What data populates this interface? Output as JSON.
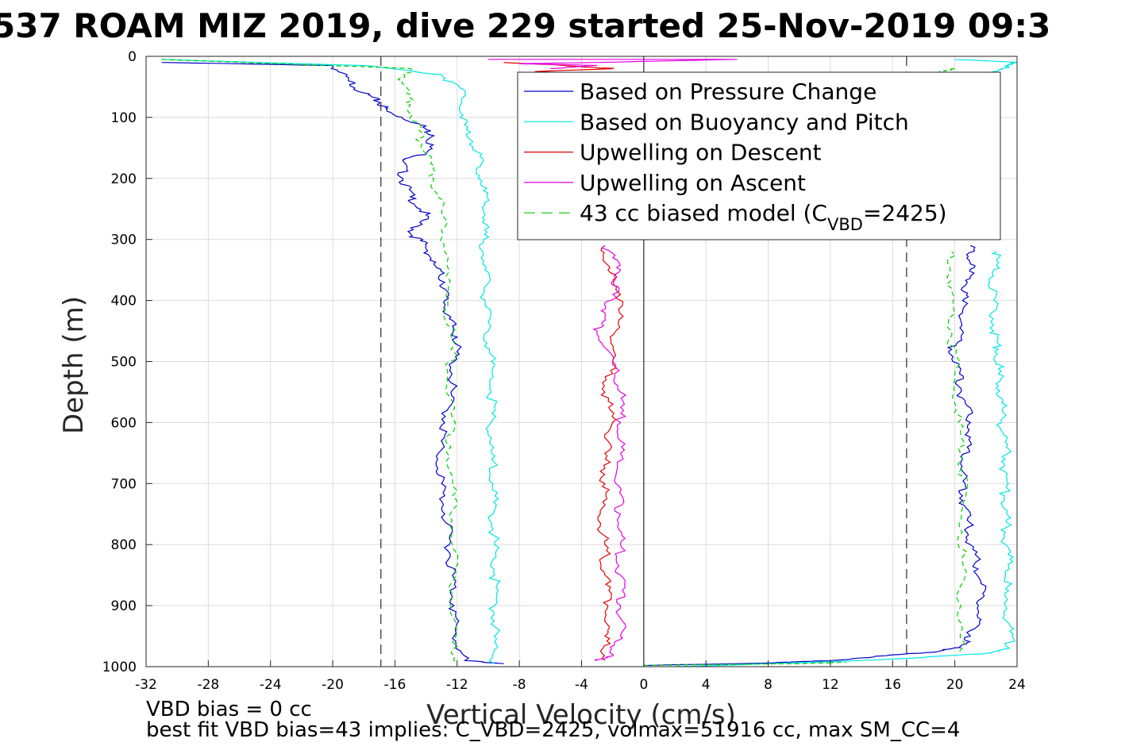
{
  "chart_data": {
    "type": "line",
    "title": "537 ROAM MIZ 2019, dive 229 started 25-Nov-2019 09:3",
    "xlabel": "Vertical Velocity (cm/s)",
    "ylabel": "Depth (m)",
    "xlim": [
      -32,
      24
    ],
    "ylim": [
      0,
      1000
    ],
    "y_reversed": true,
    "grid": true,
    "x_ticks": [
      "-32",
      "-28",
      "-24",
      "-20",
      "-16",
      "-12",
      "-8",
      "-4",
      "0",
      "4",
      "8",
      "12",
      "16",
      "20",
      "24"
    ],
    "y_ticks": [
      "0",
      "100",
      "200",
      "300",
      "400",
      "500",
      "600",
      "700",
      "800",
      "900",
      "1000"
    ],
    "reference_lines": {
      "zero_velocity_x": 0,
      "dashed_x": [
        -16.9,
        16.9
      ]
    },
    "legend": {
      "position": "top-right",
      "entries": [
        {
          "label": "Based on Pressure Change",
          "color": "#0000cc",
          "style": "solid"
        },
        {
          "label": "Based on Buoyancy and Pitch",
          "color": "#00e5e5",
          "style": "solid"
        },
        {
          "label": "Upwelling on Descent",
          "color": "#e60000",
          "style": "solid"
        },
        {
          "label": "Upwelling on Ascent",
          "color": "#e600e6",
          "style": "solid"
        },
        {
          "label_prefix": "43 cc biased model (C",
          "label_sub": "VBD",
          "label_suffix": "=2425)",
          "color": "#00cc00",
          "style": "dashed"
        }
      ]
    },
    "series": [
      {
        "name": "Based on Pressure Change",
        "color": "#0000cc",
        "segments": [
          {
            "points": [
              [
                -31,
                10
              ],
              [
                -20,
                15
              ],
              [
                -19,
                40
              ],
              [
                -18,
                60
              ],
              [
                -17,
                75
              ],
              [
                -16.5,
                90
              ],
              [
                -14.5,
                110
              ],
              [
                -13.5,
                130
              ],
              [
                -14,
                160
              ],
              [
                -15.5,
                170
              ],
              [
                -15.5,
                200
              ],
              [
                -15,
                230
              ],
              [
                -14,
                260
              ],
              [
                -15,
                290
              ],
              [
                -14,
                310
              ],
              [
                -13.5,
                340
              ],
              [
                -12.8,
                370
              ],
              [
                -12.8,
                400
              ],
              [
                -12.5,
                430
              ],
              [
                -12,
                460
              ],
              [
                -12.2,
                500
              ],
              [
                -12.4,
                550
              ],
              [
                -12.8,
                600
              ],
              [
                -13.2,
                650
              ],
              [
                -13,
                700
              ],
              [
                -12.8,
                750
              ],
              [
                -12.5,
                800
              ],
              [
                -12.3,
                850
              ],
              [
                -12.2,
                900
              ],
              [
                -12.2,
                950
              ],
              [
                -11.5,
                990
              ],
              [
                -9,
                995
              ]
            ]
          },
          {
            "points": [
              [
                0,
                998
              ],
              [
                8,
                994
              ],
              [
                12,
                990
              ],
              [
                16.5,
                980
              ],
              [
                19,
                975
              ],
              [
                20.3,
                968
              ],
              [
                21,
                950
              ],
              [
                21.5,
                920
              ],
              [
                21.8,
                880
              ],
              [
                21.5,
                840
              ],
              [
                21,
                800
              ],
              [
                20.8,
                760
              ],
              [
                20.5,
                720
              ],
              [
                20.5,
                680
              ],
              [
                20.8,
                640
              ],
              [
                21,
                600
              ],
              [
                20.5,
                560
              ],
              [
                20.3,
                520
              ],
              [
                19.8,
                480
              ],
              [
                20.5,
                450
              ],
              [
                20.5,
                400
              ],
              [
                20.8,
                370
              ],
              [
                21,
                340
              ],
              [
                21,
                310
              ]
            ]
          }
        ]
      },
      {
        "name": "Based on Buoyancy and Pitch",
        "color": "#00e5e5",
        "segments": [
          {
            "points": [
              [
                -31,
                5
              ],
              [
                -18,
                15
              ],
              [
                -13,
                30
              ],
              [
                -11.5,
                60
              ],
              [
                -11.8,
                100
              ],
              [
                -11,
                140
              ],
              [
                -10.5,
                180
              ],
              [
                -10.3,
                220
              ],
              [
                -10.2,
                260
              ],
              [
                -10.3,
                300
              ],
              [
                -10.2,
                350
              ],
              [
                -10.2,
                400
              ],
              [
                -10,
                450
              ],
              [
                -9.8,
                500
              ],
              [
                -9.8,
                550
              ],
              [
                -9.8,
                600
              ],
              [
                -9.8,
                650
              ],
              [
                -9.7,
                700
              ],
              [
                -9.7,
                750
              ],
              [
                -9.6,
                800
              ],
              [
                -9.6,
                850
              ],
              [
                -9.6,
                900
              ],
              [
                -9.6,
                950
              ],
              [
                -9.6,
                995
              ]
            ]
          },
          {
            "points": [
              [
                2,
                1000
              ],
              [
                12,
                992
              ],
              [
                18,
                985
              ],
              [
                22,
                978
              ],
              [
                23.5,
                970
              ],
              [
                23.5,
                930
              ],
              [
                23.2,
                880
              ],
              [
                23.5,
                840
              ],
              [
                23.3,
                800
              ],
              [
                23.3,
                760
              ],
              [
                23.2,
                720
              ],
              [
                23.2,
                680
              ],
              [
                23.3,
                640
              ],
              [
                23,
                600
              ],
              [
                23,
                560
              ],
              [
                22.8,
                520
              ],
              [
                22.8,
                480
              ],
              [
                22.5,
                450
              ],
              [
                22.5,
                400
              ],
              [
                22.5,
                350
              ],
              [
                22.7,
                320
              ]
            ]
          },
          {
            "points": [
              [
                20,
                5
              ],
              [
                24,
                10
              ],
              [
                23,
                20
              ],
              [
                22,
                30
              ]
            ]
          }
        ]
      },
      {
        "name": "Upwelling on Descent",
        "color": "#e60000",
        "segments": [
          {
            "points": [
              [
                -9,
                10
              ],
              [
                -5,
                15
              ],
              [
                -2,
                20
              ],
              [
                -7,
                25
              ],
              [
                -1,
                30
              ],
              [
                -6,
                35
              ],
              [
                -2,
                40
              ],
              [
                -3,
                45
              ],
              [
                -1,
                50
              ]
            ]
          },
          {
            "points": [
              [
                -2.5,
                310
              ],
              [
                -2.3,
                350
              ],
              [
                -1.5,
                390
              ],
              [
                -1.8,
                450
              ],
              [
                -2,
                500
              ],
              [
                -2.5,
                550
              ],
              [
                -2,
                600
              ],
              [
                -2.5,
                650
              ],
              [
                -2.5,
                700
              ],
              [
                -2.8,
                750
              ],
              [
                -2.5,
                800
              ],
              [
                -2.5,
                850
              ],
              [
                -2.3,
                900
              ],
              [
                -2.5,
                950
              ],
              [
                -2.5,
                990
              ]
            ]
          }
        ]
      },
      {
        "name": "Upwelling on Ascent",
        "color": "#e600e6",
        "segments": [
          {
            "points": [
              [
                -10,
                5
              ],
              [
                2,
                5
              ],
              [
                6,
                5
              ],
              [
                -3,
                10
              ],
              [
                -8,
                12
              ],
              [
                -3,
                15
              ],
              [
                -6,
                20
              ]
            ]
          },
          {
            "points": [
              [
                -2.5,
                310
              ],
              [
                -1.5,
                350
              ],
              [
                -2,
                390
              ],
              [
                -2.5,
                420
              ],
              [
                -3,
                450
              ],
              [
                -2,
                500
              ],
              [
                -1.5,
                550
              ],
              [
                -1.5,
                600
              ],
              [
                -1.5,
                650
              ],
              [
                -1.8,
                700
              ],
              [
                -1.5,
                750
              ],
              [
                -1.5,
                800
              ],
              [
                -1.5,
                850
              ],
              [
                -1.5,
                900
              ],
              [
                -1.5,
                950
              ],
              [
                -2,
                980
              ],
              [
                -3,
                990
              ]
            ]
          }
        ]
      },
      {
        "name": "43 cc biased model",
        "color": "#00cc00",
        "dashed": true,
        "segments": [
          {
            "points": [
              [
                -31,
                5
              ],
              [
                -15,
                20
              ],
              [
                -15.5,
                40
              ],
              [
                -15,
                80
              ],
              [
                -14.5,
                120
              ],
              [
                -14,
                160
              ],
              [
                -13.5,
                200
              ],
              [
                -13,
                260
              ],
              [
                -12.8,
                320
              ],
              [
                -12.6,
                400
              ],
              [
                -12.4,
                480
              ],
              [
                -12.4,
                560
              ],
              [
                -12.4,
                640
              ],
              [
                -12.3,
                720
              ],
              [
                -12.3,
                800
              ],
              [
                -12.3,
                880
              ],
              [
                -12.3,
                960
              ],
              [
                -12,
                995
              ]
            ]
          },
          {
            "points": [
              [
                0,
                998
              ],
              [
                10,
                995
              ],
              [
                13,
                993
              ]
            ]
          },
          {
            "points": [
              [
                20.3,
                975
              ],
              [
                20.4,
                900
              ],
              [
                20.5,
                820
              ],
              [
                20.5,
                740
              ],
              [
                20.5,
                660
              ],
              [
                20.2,
                600
              ],
              [
                20,
                520
              ],
              [
                19.8,
                450
              ],
              [
                19.8,
                380
              ],
              [
                19.8,
                320
              ]
            ]
          },
          {
            "points": [
              [
                20,
                20
              ],
              [
                19,
                25
              ],
              [
                20,
                30
              ]
            ]
          }
        ]
      }
    ]
  },
  "notes": {
    "line1": "VBD bias = 0 cc",
    "line2": "best fit VBD bias=43 implies: C_VBD=2425, volmax=51916 cc, max SM_CC=4"
  }
}
